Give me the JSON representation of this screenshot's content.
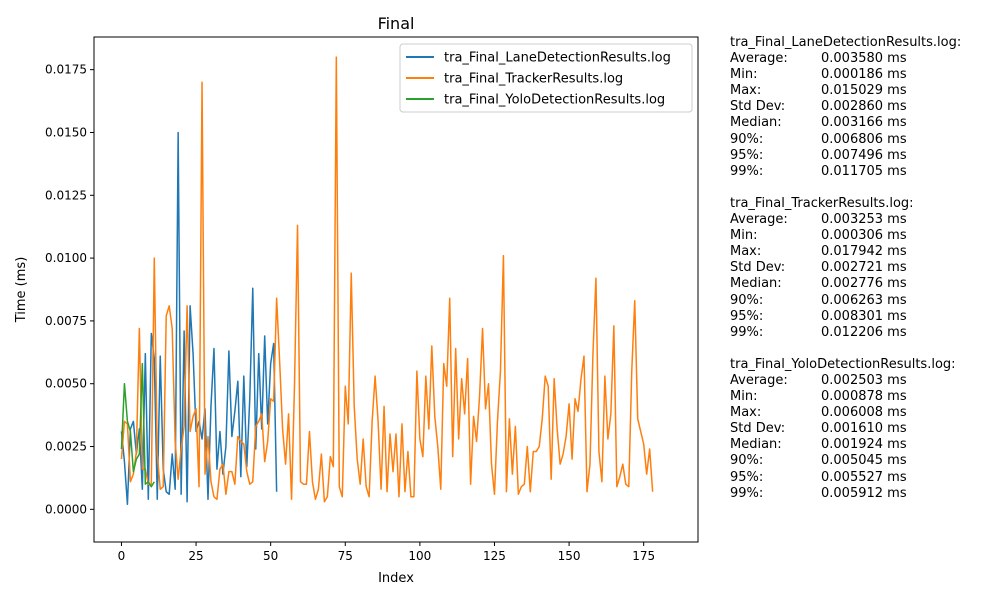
{
  "chart_data": {
    "type": "line",
    "title": "Final",
    "xlabel": "Index",
    "ylabel": "Time (ms)",
    "xlim": [
      -9.2,
      193.2
    ],
    "ylim": [
      -0.0013,
      0.0188
    ],
    "xticks": [
      0,
      25,
      50,
      75,
      100,
      125,
      150,
      175
    ],
    "yticks": [
      0.0,
      0.0025,
      0.005,
      0.0075,
      0.01,
      0.0125,
      0.015,
      0.0175
    ],
    "ytick_labels": [
      "0.0000",
      "0.0025",
      "0.0050",
      "0.0075",
      "0.0100",
      "0.0125",
      "0.0150",
      "0.0175"
    ],
    "grid": false,
    "legend_position": "top-right",
    "series": [
      {
        "name": "tra_Final_LaneDetectionResults.log",
        "color": "#1f77b4",
        "y": [
          0.0031,
          0.0019,
          0.0002,
          0.0032,
          0.0035,
          0.0022,
          0.0032,
          0.0008,
          0.0062,
          0.0004,
          0.007,
          0.006,
          0.0004,
          0.0061,
          0.0016,
          0.0007,
          0.0006,
          0.0022,
          0.0008,
          0.015,
          0.0006,
          0.0071,
          0.0003,
          0.0081,
          0.0062,
          0.0031,
          0.0035,
          0.0028,
          0.004,
          0.0004,
          0.0041,
          0.0064,
          0.0016,
          0.0031,
          0.0014,
          0.0025,
          0.0063,
          0.0029,
          0.0039,
          0.0051,
          0.0013,
          0.0053,
          0.0017,
          0.0044,
          0.0088,
          0.0024,
          0.0062,
          0.0032,
          0.0069,
          0.0034,
          0.0058,
          0.0066,
          0.0007
        ]
      },
      {
        "name": "tra_Final_TrackerResults.log",
        "color": "#ff7f0e",
        "y": [
          0.002,
          0.0035,
          0.0034,
          0.0011,
          0.0014,
          0.0023,
          0.0072,
          0.0016,
          0.0016,
          0.001,
          0.001,
          0.01,
          0.0022,
          0.0008,
          0.0009,
          0.0077,
          0.0081,
          0.0072,
          0.0027,
          0.0012,
          0.0024,
          0.0033,
          0.0081,
          0.0031,
          0.0037,
          0.004,
          0.0009,
          0.017,
          0.0014,
          0.0029,
          0.0011,
          0.0005,
          0.0004,
          0.0016,
          0.0018,
          0.0006,
          0.0015,
          0.0015,
          0.001,
          0.0029,
          0.0027,
          0.0026,
          0.0015,
          0.001,
          0.0011,
          0.0033,
          0.0035,
          0.0038,
          0.0019,
          0.0027,
          0.0044,
          0.0043,
          0.0084,
          0.0059,
          0.0032,
          0.0018,
          0.0038,
          0.0004,
          0.005,
          0.0113,
          0.0011,
          0.001,
          0.001,
          0.0031,
          0.0011,
          0.0004,
          0.0008,
          0.0022,
          0.0003,
          0.0005,
          0.0021,
          0.0017,
          0.018,
          0.0009,
          0.0005,
          0.0049,
          0.0034,
          0.0094,
          0.0041,
          0.002,
          0.001,
          0.0028,
          0.0009,
          0.0005,
          0.0035,
          0.0053,
          0.0035,
          0.0008,
          0.0041,
          0.0007,
          0.003,
          0.0015,
          0.003,
          0.0005,
          0.0034,
          0.0007,
          0.0023,
          0.0005,
          0.0005,
          0.0055,
          0.0028,
          0.0021,
          0.0053,
          0.0032,
          0.0065,
          0.0037,
          0.0025,
          0.0008,
          0.0058,
          0.0049,
          0.0084,
          0.0021,
          0.0064,
          0.0028,
          0.0052,
          0.0038,
          0.006,
          0.001,
          0.0037,
          0.0027,
          0.0045,
          0.0072,
          0.004,
          0.005,
          0.0018,
          0.0006,
          0.0035,
          0.0055,
          0.0101,
          0.0007,
          0.0036,
          0.0014,
          0.0033,
          0.0006,
          0.0009,
          0.001,
          0.0025,
          0.0007,
          0.0023,
          0.0023,
          0.0025,
          0.0036,
          0.0053,
          0.0049,
          0.0012,
          0.0052,
          0.0032,
          0.0018,
          0.0022,
          0.0029,
          0.0042,
          0.002,
          0.0044,
          0.0039,
          0.0052,
          0.0061,
          0.0007,
          0.0018,
          0.0062,
          0.0092,
          0.0023,
          0.0011,
          0.0053,
          0.0028,
          0.0038,
          0.0073,
          0.0009,
          0.0013,
          0.0018,
          0.001,
          0.0009,
          0.0055,
          0.0083,
          0.0036,
          0.0031,
          0.0026,
          0.0014,
          0.0024,
          0.0007
        ]
      },
      {
        "name": "tra_Final_YoloDetectionResults.log",
        "color": "#2ca02c",
        "y": [
          0.0024,
          0.005,
          0.0035,
          0.0031,
          0.0015,
          0.002,
          0.0022,
          0.0058,
          0.001,
          0.0011,
          0.0009,
          0.0011
        ]
      }
    ]
  },
  "stats": [
    {
      "header": "tra_Final_LaneDetectionResults.log:",
      "rows": [
        {
          "label": "Average:",
          "value": "0.003580 ms"
        },
        {
          "label": "Min:",
          "value": "0.000186 ms"
        },
        {
          "label": "Max:",
          "value": "0.015029 ms"
        },
        {
          "label": "Std Dev:",
          "value": "0.002860 ms"
        },
        {
          "label": "Median:",
          "value": "0.003166 ms"
        },
        {
          "label": "90%:",
          "value": "0.006806 ms"
        },
        {
          "label": "95%:",
          "value": "0.007496 ms"
        },
        {
          "label": "99%:",
          "value": "0.011705 ms"
        }
      ]
    },
    {
      "header": "tra_Final_TrackerResults.log:",
      "rows": [
        {
          "label": "Average:",
          "value": "0.003253 ms"
        },
        {
          "label": "Min:",
          "value": "0.000306 ms"
        },
        {
          "label": "Max:",
          "value": "0.017942 ms"
        },
        {
          "label": "Std Dev:",
          "value": "0.002721 ms"
        },
        {
          "label": "Median:",
          "value": "0.002776 ms"
        },
        {
          "label": "90%:",
          "value": "0.006263 ms"
        },
        {
          "label": "95%:",
          "value": "0.008301 ms"
        },
        {
          "label": "99%:",
          "value": "0.012206 ms"
        }
      ]
    },
    {
      "header": "tra_Final_YoloDetectionResults.log:",
      "rows": [
        {
          "label": "Average:",
          "value": "0.002503 ms"
        },
        {
          "label": "Min:",
          "value": "0.000878 ms"
        },
        {
          "label": "Max:",
          "value": "0.006008 ms"
        },
        {
          "label": "Std Dev:",
          "value": "0.001610 ms"
        },
        {
          "label": "Median:",
          "value": "0.001924 ms"
        },
        {
          "label": "90%:",
          "value": "0.005045 ms"
        },
        {
          "label": "95%:",
          "value": "0.005527 ms"
        },
        {
          "label": "99%:",
          "value": "0.005912 ms"
        }
      ]
    }
  ]
}
